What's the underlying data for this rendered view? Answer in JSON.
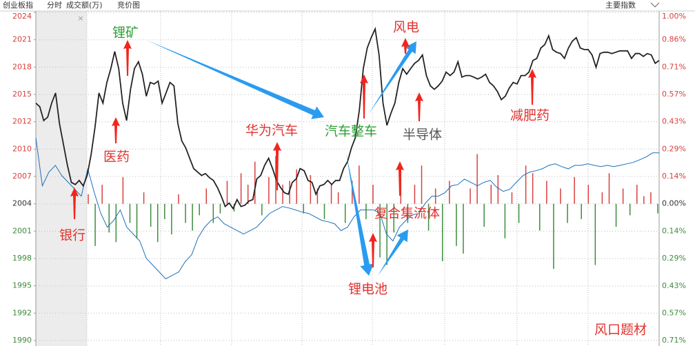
{
  "chart_data": {
    "type": "line",
    "header": [
      "创业板指",
      "分时",
      "成交额(万)",
      "竞价图"
    ],
    "button": "主要指数",
    "close_mark": "×",
    "ylim": [
      -0.714,
      1.0
    ],
    "yticks": [
      {
        "value": 1.0,
        "label": "1.00%"
      },
      {
        "value": 0.857,
        "label": "0.86%"
      },
      {
        "value": 0.714,
        "label": "0.71%"
      },
      {
        "value": 0.571,
        "label": "0.57%"
      },
      {
        "value": 0.429,
        "label": "0.43%"
      },
      {
        "value": 0.286,
        "label": "0.29%"
      },
      {
        "value": 0.143,
        "label": "0.14%"
      },
      {
        "value": 0,
        "label": "0.00%"
      },
      {
        "value": -0.143,
        "label": "0.14%"
      },
      {
        "value": -0.286,
        "label": "0.29%"
      },
      {
        "value": -0.429,
        "label": "0.43%"
      },
      {
        "value": -0.571,
        "label": "0.57%"
      },
      {
        "value": -0.714,
        "label": "0.71%"
      }
    ],
    "y2lim": [
      1989.6,
      2023.8
    ],
    "y2ticks": [
      {
        "value": 2023.8,
        "label": "2024"
      },
      {
        "value": 2020.95,
        "label": "2021"
      },
      {
        "value": 2018.1,
        "label": "2018"
      },
      {
        "value": 2015.25,
        "label": "2015"
      },
      {
        "value": 2012.4,
        "label": "2012"
      },
      {
        "value": 2009.55,
        "label": "2010"
      },
      {
        "value": 2006.7,
        "label": "2007"
      },
      {
        "value": 2003.85,
        "label": "2004"
      },
      {
        "value": 2001.0,
        "label": "2001"
      },
      {
        "value": 1998.15,
        "label": "1998"
      },
      {
        "value": 1995.3,
        "label": "1995"
      },
      {
        "value": 1992.45,
        "label": "1992"
      },
      {
        "value": 1989.6,
        "label": "1990"
      }
    ],
    "grid": true,
    "series": [
      {
        "color": "#222222",
        "values": [
          0.526,
          0.507,
          0.435,
          0.453,
          0.526,
          0.579,
          0.418,
          0.309,
          0.201,
          0.112,
          0.101,
          0.122,
          0.094,
          0.148,
          0.256,
          0.4,
          0.579,
          0.526,
          0.634,
          0.706,
          0.796,
          0.706,
          0.526,
          0.435,
          0.598,
          0.706,
          0.742,
          0.677,
          0.562,
          0.634,
          0.626,
          0.641,
          0.526,
          0.579,
          0.634,
          0.616,
          0.418,
          0.328,
          0.292,
          0.238,
          0.184,
          0.166,
          0.148,
          0.158,
          0.137,
          0.122,
          0.086,
          0.04,
          -0.014,
          0.004,
          -0.025,
          0.022,
          -0.014,
          -0.007,
          0.014,
          0.022,
          0.13,
          0.148,
          0.201,
          0.238,
          0.184,
          0.122,
          0.086,
          0.058,
          0.05,
          0.112,
          0.13,
          0.184,
          0.173,
          0.122,
          0.112,
          0.05,
          0.094,
          0.101,
          0.122,
          0.101,
          0.122,
          0.122,
          0.184,
          0.22,
          0.292,
          0.346,
          0.49,
          0.706,
          0.814,
          0.868,
          0.914,
          0.778,
          0.526,
          0.41,
          0.472,
          0.526,
          0.634,
          0.706,
          0.677,
          0.706,
          0.734,
          0.749,
          0.778,
          0.67,
          0.616,
          0.598,
          0.616,
          0.641,
          0.688,
          0.67,
          0.688,
          0.742,
          0.662,
          0.67,
          0.67,
          0.662,
          0.652,
          0.662,
          0.677,
          0.634,
          0.616,
          0.587,
          0.544,
          0.562,
          0.605,
          0.634,
          0.626,
          0.67,
          0.67,
          0.688,
          0.749,
          0.76,
          0.814,
          0.832,
          0.878,
          0.806,
          0.792,
          0.785,
          0.76,
          0.814,
          0.85,
          0.868,
          0.814,
          0.806,
          0.806,
          0.778,
          0.713,
          0.785,
          0.792,
          0.792,
          0.785,
          0.792,
          0.799,
          0.799,
          0.799,
          0.76,
          0.785,
          0.785,
          0.77,
          0.785,
          0.778,
          0.734,
          0.749
        ]
      },
      {
        "color": "#1d6fb8",
        "values": [
          0.345,
          0.094,
          0.165,
          0.201,
          0.147,
          0.112,
          0.076,
          0.04,
          0.183,
          0.058,
          -0.05,
          -0.122,
          -0.086,
          -0.032,
          -0.122,
          -0.158,
          -0.194,
          -0.284,
          -0.32,
          -0.356,
          -0.392,
          -0.374,
          -0.356,
          -0.302,
          -0.266,
          -0.176,
          -0.122,
          -0.086,
          -0.068,
          -0.104,
          -0.122,
          -0.14,
          -0.158,
          -0.14,
          -0.122,
          -0.086,
          -0.05,
          -0.032,
          -0.014,
          -0.022,
          -0.032,
          -0.043,
          -0.05,
          -0.068,
          -0.086,
          -0.094,
          -0.104,
          -0.14,
          -0.122,
          -0.068,
          -0.032,
          -0.032,
          -0.032,
          -0.05,
          -0.158,
          -0.194,
          -0.122,
          -0.086,
          -0.058,
          -0.05,
          0.004,
          0.04,
          0.04,
          0.058,
          0.094,
          0.101,
          0.129,
          0.112,
          0.094,
          0.112,
          0.122,
          0.086,
          0.065,
          0.076,
          0.112,
          0.147,
          0.165,
          0.173,
          0.183,
          0.201,
          0.209,
          0.194,
          0.183,
          0.201,
          0.201,
          0.209,
          0.201,
          0.194,
          0.201,
          0.194,
          0.201,
          0.209,
          0.216,
          0.23,
          0.245,
          0.266,
          0.266
        ]
      }
    ],
    "bars": {
      "up_color": "#d8403e",
      "down_color": "#3d8b3d",
      "values": [
        0.05,
        -0.22,
        0.1,
        -0.15,
        -0.2,
        0.14,
        -0.1,
        -0.18,
        0.06,
        -0.12,
        -0.2,
        -0.08,
        -0.16,
        0.05,
        -0.1,
        -0.14,
        -0.06,
        0.08,
        -0.1,
        -0.05,
        0.12,
        -0.04,
        0.16,
        0.1,
        0.22,
        -0.06,
        0.14,
        0.25,
        0.1,
        0.12,
        0.18,
        -0.05,
        0.15,
        0.08,
        -0.08,
        0.1,
        0.06,
        -0.1,
        0.12,
        0.2,
        -0.08,
        0.1,
        -0.28,
        -0.32,
        -0.15,
        0.18,
        -0.1,
        0.1,
        0.2,
        -0.14,
        0.08,
        -0.3,
        0.12,
        -0.22,
        -0.26,
        0.08,
        0.26,
        -0.12,
        0.1,
        0.15,
        -0.18,
        0.06,
        -0.1,
        0.2,
        0.16,
        -0.14,
        0.12,
        -0.34,
        0.08,
        -0.1,
        0.14,
        -0.08,
        0.1,
        -0.32,
        0.06,
        0.16,
        -0.12,
        0.08,
        -0.06,
        0.1,
        0.04,
        0.06,
        -0.05
      ]
    },
    "annotations": [
      {
        "text": "锂矿",
        "color": "#2e9e35"
      },
      {
        "text": "医药",
        "color": "#e0332f"
      },
      {
        "text": "银行",
        "color": "#e0332f"
      },
      {
        "text": "华为汽车",
        "color": "#e0332f"
      },
      {
        "text": "汽车整车",
        "color": "#2e9e35"
      },
      {
        "text": "风电",
        "color": "#e0332f"
      },
      {
        "text": "半导体",
        "color": "#555555"
      },
      {
        "text": "减肥药",
        "color": "#e0332f"
      },
      {
        "text": "复合集流体",
        "color": "#e0332f"
      },
      {
        "text": "锂电池",
        "color": "#e0332f"
      },
      {
        "text": "风口题材",
        "color": "#e0332f"
      }
    ]
  }
}
